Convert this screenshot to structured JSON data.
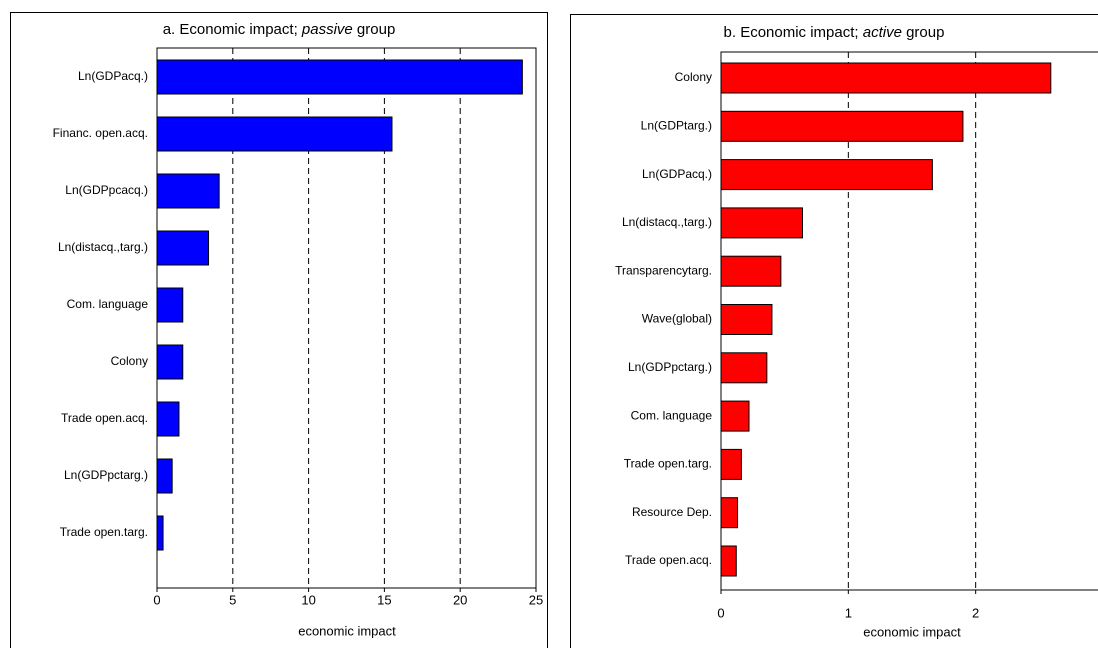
{
  "chart_data": [
    {
      "type": "bar",
      "orientation": "horizontal",
      "title": [
        "a. Economic impact; ",
        "passive",
        " group"
      ],
      "categories": [
        "Ln(GDPacq.)",
        "Financ. open.acq.",
        "Ln(GDPpcacq.)",
        "Ln(distacq.,targ.)",
        "Com. language",
        "Colony",
        "Trade open.acq.",
        "Ln(GDPpctarg.)",
        "Trade open.targ."
      ],
      "values": [
        24.1,
        15.5,
        4.1,
        3.4,
        1.7,
        1.7,
        1.45,
        1.0,
        0.4
      ],
      "color": "#0000ff",
      "xlim": [
        0,
        25
      ],
      "xticks": [
        0,
        5,
        10,
        15,
        20,
        25
      ],
      "xlabel": "economic impact",
      "grid": true
    },
    {
      "type": "bar",
      "orientation": "horizontal",
      "title": [
        "b. Economic impact; ",
        "active",
        " group"
      ],
      "categories": [
        "Colony",
        "Ln(GDPtarg.)",
        "Ln(GDPacq.)",
        "Ln(distacq.,targ.)",
        "Transparencytarg.",
        "Wave(global)",
        "Ln(GDPpctarg.)",
        "Com. language",
        "Trade open.targ.",
        "Resource Dep.",
        "Trade open.acq."
      ],
      "values": [
        2.59,
        1.9,
        1.66,
        0.64,
        0.47,
        0.4,
        0.36,
        0.22,
        0.16,
        0.13,
        0.12
      ],
      "color": "#ff0000",
      "xlim": [
        0,
        3
      ],
      "xticks": [
        0,
        1,
        2,
        3
      ],
      "xlabel": "economic impact",
      "grid": true
    }
  ]
}
